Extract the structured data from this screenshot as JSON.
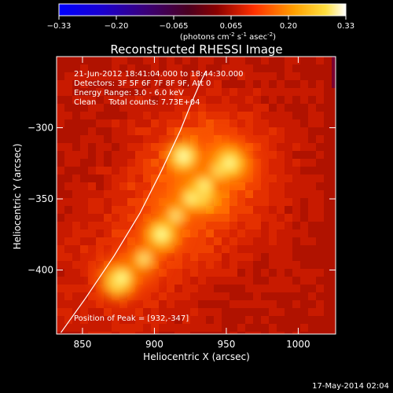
{
  "colorbar": {
    "ticks": [
      "-0.33",
      "-0.20",
      "-0.065",
      "0.065",
      "0.20",
      "0.33"
    ],
    "unit_pre": "(photons cm",
    "unit_sup1": "-2",
    "unit_mid1": " s",
    "unit_sup2": "-1",
    "unit_mid2": " asec",
    "unit_sup3": "-2",
    "unit_post": ")"
  },
  "chart_data": {
    "type": "heatmap",
    "title": "Reconstructed RHESSI Image",
    "xlabel": "Heliocentric X (arcsec)",
    "ylabel": "Heliocentric Y (arcsec)",
    "xlim": [
      832,
      1026
    ],
    "ylim": [
      -445,
      -250
    ],
    "x_ticks": [
      850,
      900,
      950,
      1000
    ],
    "y_ticks": [
      -300,
      -350,
      -400
    ],
    "x_tick_labels": [
      "850",
      "900",
      "950",
      "1000"
    ],
    "y_tick_labels": [
      "−300",
      "−350",
      "−400"
    ],
    "colorbar_range": [
      -0.33,
      0.33
    ],
    "colormap": "red-temperature",
    "peak": [
      932,
      -347
    ],
    "annotations": [
      "21-Jun-2012 18:41:04.000 to 18:44:30.000",
      "Detectors: 3F 5F 6F 7F 8F 9F, Att 0",
      "Energy Range: 3.0 - 6.0 keV",
      "Clean     Total counts: 7.73E+04"
    ],
    "peak_label": "Position of Peak = [932,-347]",
    "sources": [
      {
        "x": 952,
        "y": -325,
        "intensity": 0.33
      },
      {
        "x": 932,
        "y": -347,
        "intensity": 0.33
      },
      {
        "x": 920,
        "y": -320,
        "intensity": 0.25
      },
      {
        "x": 905,
        "y": -375,
        "intensity": 0.27
      },
      {
        "x": 875,
        "y": -408,
        "intensity": 0.26
      }
    ],
    "limb_curve": [
      [
        835,
        -444
      ],
      [
        852,
        -420
      ],
      [
        872,
        -390
      ],
      [
        890,
        -360
      ],
      [
        905,
        -330
      ],
      [
        918,
        -302
      ],
      [
        926,
        -282
      ],
      [
        932,
        -268
      ],
      [
        936,
        -260
      ]
    ]
  },
  "footer": {
    "timestamp": "17-May-2014 02:04"
  }
}
